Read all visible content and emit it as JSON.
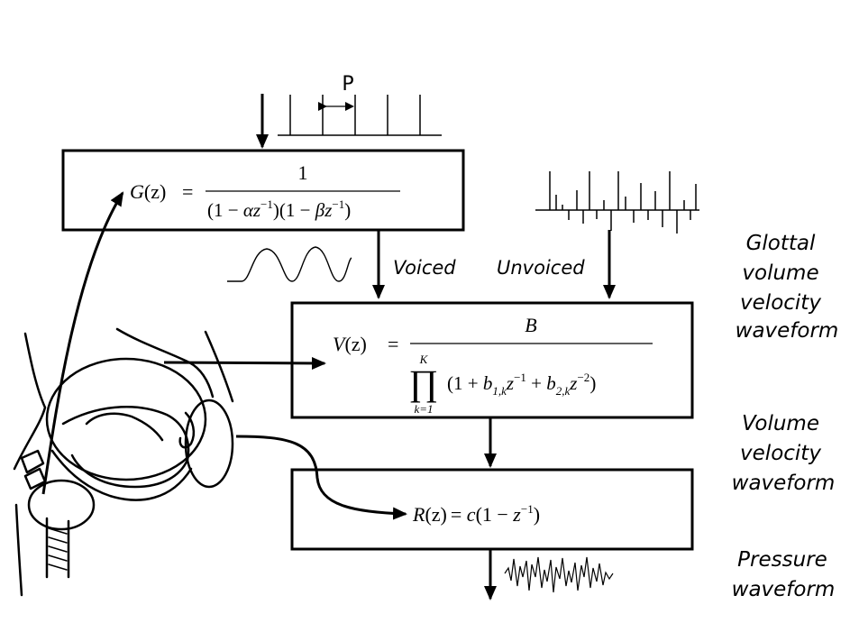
{
  "pulse_train": {
    "label": "P"
  },
  "glottal_block": {
    "lhs": "G",
    "arg": "(z)",
    "eq": "=",
    "num": "1",
    "den_a_open": "(1 − ",
    "den_a_coef": "αz",
    "den_a_close": ")",
    "den_b_open": "(1 − ",
    "den_b_coef": "βz",
    "den_b_close": ")",
    "exp": "−1"
  },
  "vocal_block": {
    "lhs": "V",
    "arg": "(z)",
    "eq": "=",
    "num": "B",
    "prod_top": "K",
    "prod_sym": "∏",
    "prod_bottom": "k=1",
    "den_a": "(1 + ",
    "b1": "b",
    "b1_sub": "1,k",
    "z1": "z",
    "z1_exp": "−1",
    "plus": " + ",
    "b2": "b",
    "b2_sub": "2,k",
    "z2": "z",
    "z2_exp": "−2",
    "den_close": ")"
  },
  "radiation_block": {
    "lhs": "R",
    "arg": "(z)",
    "eq": "= ",
    "c": "c",
    "rest": "(1 − ",
    "z": "z",
    "exp": "−1",
    "close": ")"
  },
  "switch_labels": {
    "voiced": "Voiced",
    "unvoiced": "Unvoiced"
  },
  "side_labels": {
    "glottal": [
      "Glottal",
      "volume",
      "velocity",
      "waveform"
    ],
    "volume": [
      "Volume",
      "velocity",
      "waveform"
    ],
    "pressure": [
      "Pressure",
      "waveform"
    ]
  }
}
